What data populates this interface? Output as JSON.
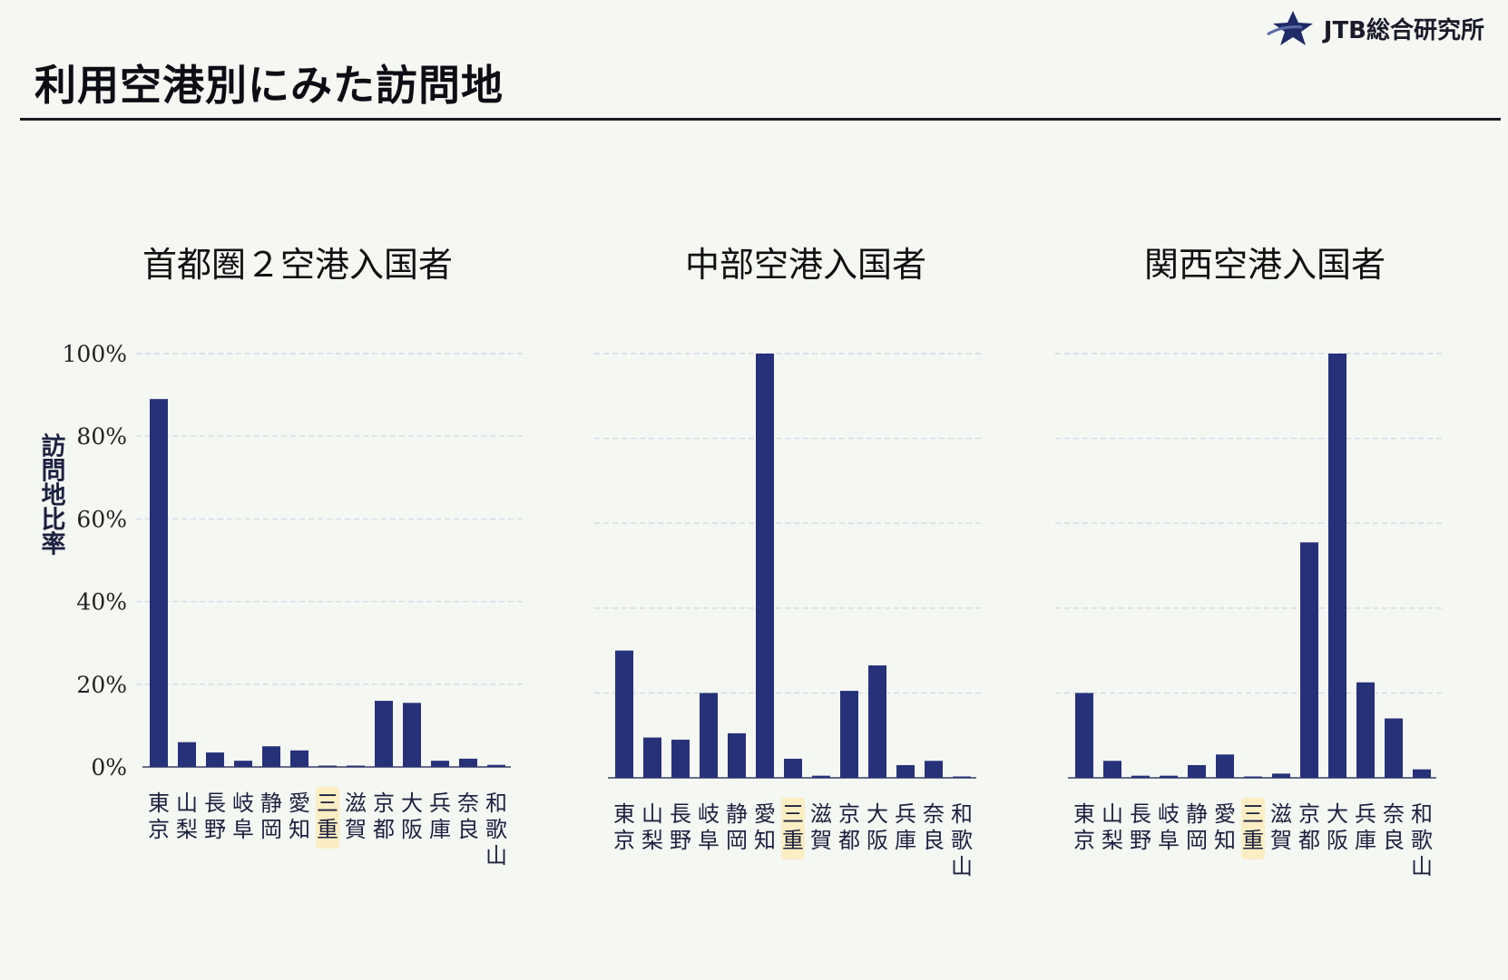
{
  "header": {
    "logo_text": "JTB総合研究所",
    "title": "利用空港別にみた訪問地"
  },
  "colors": {
    "bar": "#27317a",
    "highlight": "#fbeec2",
    "background": "#f4f7f2"
  },
  "icons": {
    "logo": "jtb-star-logo-icon"
  },
  "chart_data": [
    {
      "type": "bar",
      "title": "首都圏２空港入国者",
      "ylabel": "訪問地比率",
      "yticks": [
        "100%",
        "80%",
        "60%",
        "40%",
        "20%",
        "0%"
      ],
      "ylim": [
        0,
        100
      ],
      "categories": [
        "東京",
        "山梨",
        "長野",
        "岐阜",
        "静岡",
        "愛知",
        "三重",
        "滋賀",
        "京都",
        "大阪",
        "兵庫",
        "奈良",
        "和歌山"
      ],
      "highlight_category": "三重",
      "values": [
        89,
        6,
        3.5,
        1.5,
        5,
        4,
        0.3,
        0.3,
        16,
        15.5,
        1.5,
        2,
        0.5
      ]
    },
    {
      "type": "bar",
      "title": "中部空港入国者",
      "ylim": [
        0,
        100
      ],
      "categories": [
        "東京",
        "山梨",
        "長野",
        "岐阜",
        "静岡",
        "愛知",
        "三重",
        "滋賀",
        "京都",
        "大阪",
        "兵庫",
        "奈良",
        "和歌山"
      ],
      "highlight_category": "三重",
      "values": [
        30,
        9.5,
        9,
        20,
        10.5,
        100,
        4.5,
        0.5,
        20.5,
        26.5,
        3,
        4,
        0.3
      ]
    },
    {
      "type": "bar",
      "title": "関西空港入国者",
      "ylim": [
        0,
        100
      ],
      "categories": [
        "東京",
        "山梨",
        "長野",
        "岐阜",
        "静岡",
        "愛知",
        "三重",
        "滋賀",
        "京都",
        "大阪",
        "兵庫",
        "奈良",
        "和歌山"
      ],
      "highlight_category": "三重",
      "values": [
        20,
        4,
        0.5,
        0.5,
        3,
        5.5,
        0.3,
        1,
        55.5,
        100,
        22.5,
        14,
        2
      ]
    }
  ]
}
